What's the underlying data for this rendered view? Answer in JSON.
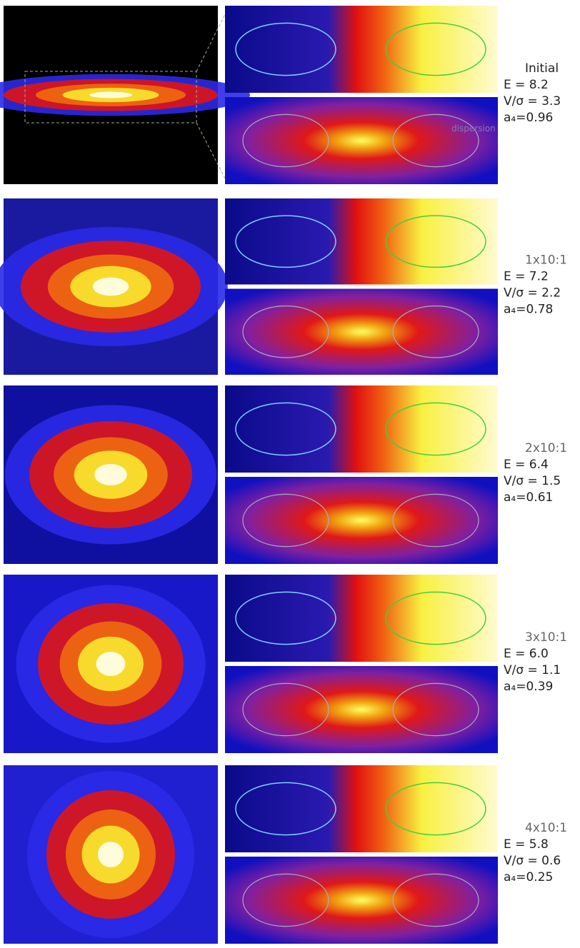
{
  "dispersion_label": "dispersion",
  "rows": [
    {
      "label": "Initial",
      "E": "E = 8.2",
      "v_sigma": "V/σ = 3.3",
      "a4": "a₄=0.96"
    },
    {
      "label": "1x10:1",
      "E": "E = 7.2",
      "v_sigma": "V/σ = 2.2",
      "a4": "a₄=0.78"
    },
    {
      "label": "2x10:1",
      "E": "E = 6.4",
      "v_sigma": "V/σ = 1.5",
      "a4": "a₄=0.61"
    },
    {
      "label": "3x10:1",
      "E": "E = 6.0",
      "v_sigma": "V/σ = 1.1",
      "a4": "a₄=0.39"
    },
    {
      "label": "4x10:1",
      "E": "E = 5.8",
      "v_sigma": "V/σ = 0.6",
      "a4": "a₄=0.25"
    }
  ]
}
